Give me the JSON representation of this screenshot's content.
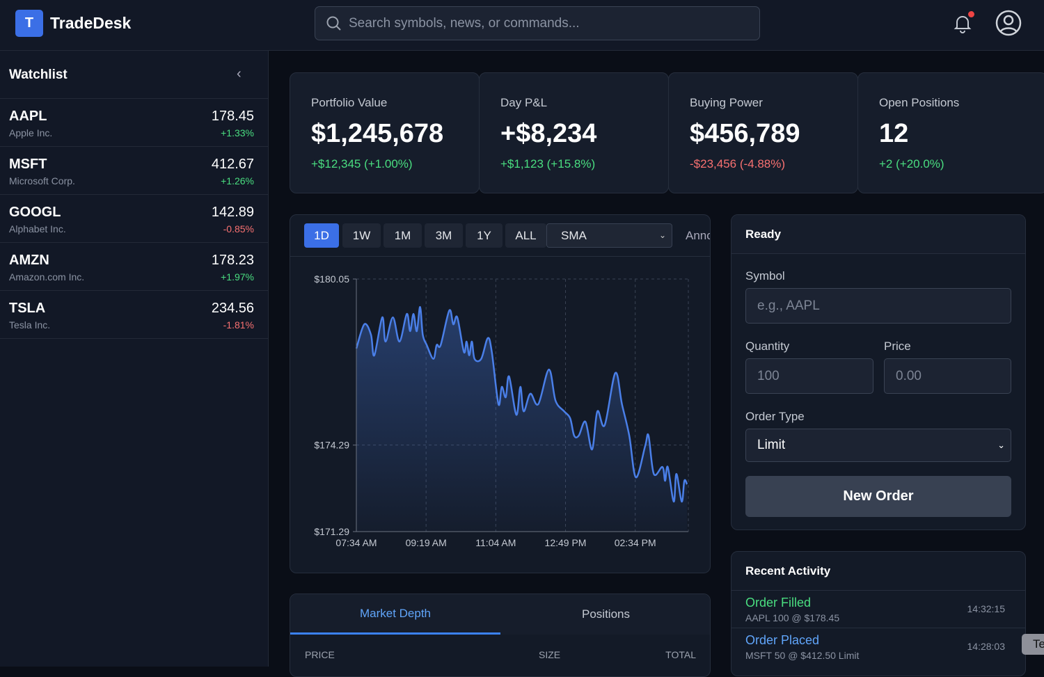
{
  "app": {
    "logo_letter": "T",
    "title": "TradeDesk"
  },
  "search": {
    "placeholder": "Search symbols, news, or commands..."
  },
  "notifications": {
    "has_unread": true
  },
  "sidebar": {
    "title": "Watchlist",
    "items": [
      {
        "symbol": "AAPL",
        "name": "Apple Inc.",
        "price": "178.45",
        "change": "+1.33%",
        "dir": "up"
      },
      {
        "symbol": "MSFT",
        "name": "Microsoft Corp.",
        "price": "412.67",
        "change": "+1.26%",
        "dir": "up"
      },
      {
        "symbol": "GOOGL",
        "name": "Alphabet Inc.",
        "price": "142.89",
        "change": "-0.85%",
        "dir": "dn"
      },
      {
        "symbol": "AMZN",
        "name": "Amazon.com Inc.",
        "price": "178.23",
        "change": "+1.97%",
        "dir": "up"
      },
      {
        "symbol": "TSLA",
        "name": "Tesla Inc.",
        "price": "234.56",
        "change": "-1.81%",
        "dir": "dn"
      }
    ]
  },
  "stats": [
    {
      "label": "Portfolio Value",
      "value": "$1,245,678",
      "delta": "+$12,345 (+1.00%)",
      "dir": "up"
    },
    {
      "label": "Day P&L",
      "value": "+$8,234",
      "delta": "+$1,123 (+15.8%)",
      "dir": "up"
    },
    {
      "label": "Buying Power",
      "value": "$456,789",
      "delta": "-$23,456 (-4.88%)",
      "dir": "dn"
    },
    {
      "label": "Open Positions",
      "value": "12",
      "delta": "+2 (+20.0%)",
      "dir": "up"
    }
  ],
  "chart_toolbar": {
    "timeframes": [
      "1D",
      "1W",
      "1M",
      "3M",
      "1Y",
      "ALL"
    ],
    "active": "1D",
    "indicator": "SMA",
    "annotate_label": "Annc"
  },
  "chart_data": {
    "type": "area",
    "yticks": [
      "$180.05",
      "$174.29",
      "$171.29"
    ],
    "xticks": [
      "07:34 AM",
      "09:19 AM",
      "11:04 AM",
      "12:49 PM",
      "02:34 PM"
    ],
    "ylim": [
      171.29,
      180.05
    ],
    "xlim": [
      "07:34",
      "15:54"
    ],
    "grid": true,
    "color": "#4a7fe8",
    "x": [
      "07:34",
      "07:46",
      "07:56",
      "08:01",
      "08:13",
      "08:18",
      "08:29",
      "08:39",
      "08:50",
      "08:55",
      "09:00",
      "09:05",
      "09:10",
      "09:14",
      "09:20",
      "09:30",
      "09:35",
      "09:41",
      "09:54",
      "10:00",
      "10:06",
      "10:16",
      "10:20",
      "10:24",
      "10:28",
      "10:32",
      "10:42",
      "10:52",
      "10:58",
      "11:08",
      "11:13",
      "11:19",
      "11:24",
      "11:35",
      "11:41",
      "11:46",
      "11:56",
      "12:08",
      "12:24",
      "12:34",
      "12:47",
      "12:56",
      "13:02",
      "13:09",
      "13:19",
      "13:29",
      "13:37",
      "13:48",
      "14:04",
      "14:14",
      "14:25",
      "14:35",
      "14:49",
      "14:54",
      "15:02",
      "15:15",
      "15:19",
      "15:23",
      "15:32",
      "15:36",
      "15:44",
      "15:48",
      "15:52"
    ],
    "values": [
      177.64,
      178.48,
      178.12,
      177.4,
      178.72,
      177.88,
      178.72,
      177.88,
      178.84,
      178.24,
      178.84,
      178.24,
      179.08,
      178.12,
      177.76,
      177.28,
      177.76,
      177.76,
      178.96,
      178.48,
      178.72,
      177.52,
      177.88,
      177.4,
      177.88,
      177.28,
      177.28,
      178.0,
      177.52,
      175.71,
      176.31,
      175.95,
      176.67,
      175.34,
      176.31,
      175.46,
      176.07,
      175.71,
      176.91,
      175.83,
      175.46,
      175.22,
      174.62,
      174.62,
      175.1,
      174.14,
      175.46,
      174.98,
      176.79,
      175.71,
      174.62,
      173.17,
      174.26,
      174.62,
      173.29,
      173.53,
      173.05,
      173.53,
      172.33,
      173.29,
      172.33,
      173.05,
      172.93
    ]
  },
  "order": {
    "status": "Ready",
    "symbol_label": "Symbol",
    "symbol_placeholder": "e.g., AAPL",
    "qty_label": "Quantity",
    "qty_placeholder": "100",
    "price_label": "Price",
    "price_placeholder": "0.00",
    "type_label": "Order Type",
    "type_value": "Limit",
    "submit": "New Order"
  },
  "activity": {
    "title": "Recent Activity",
    "items": [
      {
        "title": "Order Filled",
        "detail": "AAPL 100 @ $178.45",
        "time": "14:32:15",
        "color": "#4ade80"
      },
      {
        "title": "Order Placed",
        "detail": "MSFT 50 @ $412.50 Limit",
        "time": "14:28:03",
        "color": "#60a5fa"
      }
    ]
  },
  "bottom_tabs": {
    "tabs": [
      "Market Depth",
      "Positions"
    ],
    "active": "Market Depth",
    "columns": [
      "PRICE",
      "SIZE",
      "TOTAL"
    ]
  },
  "toast": {
    "text": "Te"
  }
}
